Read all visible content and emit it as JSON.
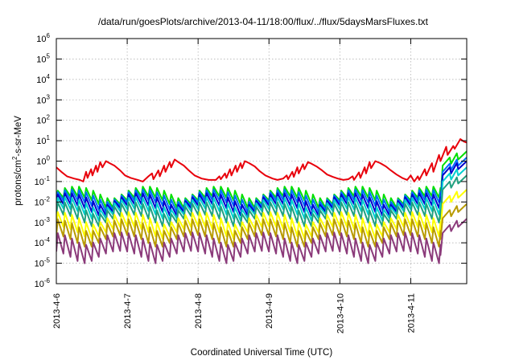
{
  "chart_data": {
    "type": "line",
    "title": "/data/run/goesPlots/archive/2013-04-11/18:00/flux/../flux/5daysMarsFluxes.txt",
    "xlabel": "Coordinated Universal Time (UTC)",
    "ylabel": {
      "base": "protons/cm",
      "sup": "2",
      "rest": "-s-sr-MeV"
    },
    "y_scale": "log",
    "ylim": [
      1e-06,
      1000000.0
    ],
    "xlim": [
      "2013-04-06 00:00",
      "2013-04-11 19:00"
    ],
    "grid": true,
    "legend": "none",
    "y_ticks": [
      {
        "exp": -6,
        "label": "10",
        "sup": "-6"
      },
      {
        "exp": -5,
        "label": "10",
        "sup": "-5"
      },
      {
        "exp": -4,
        "label": "10",
        "sup": "-4"
      },
      {
        "exp": -3,
        "label": "10",
        "sup": "-3"
      },
      {
        "exp": -2,
        "label": "10",
        "sup": "-2"
      },
      {
        "exp": -1,
        "label": "10",
        "sup": "-1"
      },
      {
        "exp": 0,
        "label": "10",
        "sup": "0"
      },
      {
        "exp": 1,
        "label": "10",
        "sup": "1"
      },
      {
        "exp": 2,
        "label": "10",
        "sup": "2"
      },
      {
        "exp": 3,
        "label": "10",
        "sup": "3"
      },
      {
        "exp": 4,
        "label": "10",
        "sup": "4"
      },
      {
        "exp": 5,
        "label": "10",
        "sup": "5"
      },
      {
        "exp": 6,
        "label": "10",
        "sup": "6"
      }
    ],
    "x_ticks": [
      {
        "day": 0,
        "label": "2013-4-6"
      },
      {
        "day": 1,
        "label": "2013-4-7"
      },
      {
        "day": 2,
        "label": "2013-4-8"
      },
      {
        "day": 3,
        "label": "2013-4-9"
      },
      {
        "day": 4,
        "label": "2013-4-10"
      },
      {
        "day": 5,
        "label": "2013-4-11"
      }
    ],
    "series": [
      {
        "color": "#e8000b",
        "points": [
          [
            0,
            0.5
          ],
          [
            0.07,
            0.3
          ],
          [
            0.15,
            0.18
          ],
          [
            0.25,
            0.14
          ],
          [
            0.33,
            0.12
          ],
          [
            0.38,
            0.1
          ],
          [
            0.42,
            0.3
          ],
          [
            0.44,
            0.15
          ],
          [
            0.49,
            0.4
          ],
          [
            0.51,
            0.2
          ],
          [
            0.56,
            0.6
          ],
          [
            0.58,
            0.3
          ],
          [
            0.62,
            0.9
          ],
          [
            0.65,
            0.5
          ],
          [
            0.7,
            1.0
          ],
          [
            0.75,
            0.8
          ],
          [
            0.82,
            0.6
          ],
          [
            0.9,
            0.35
          ],
          [
            0.97,
            0.2
          ],
          [
            1.05,
            0.15
          ],
          [
            1.15,
            0.12
          ],
          [
            1.22,
            0.1
          ],
          [
            1.3,
            0.18
          ],
          [
            1.35,
            0.25
          ],
          [
            1.37,
            0.13
          ],
          [
            1.44,
            0.35
          ],
          [
            1.46,
            0.18
          ],
          [
            1.52,
            0.6
          ],
          [
            1.54,
            0.3
          ],
          [
            1.6,
            0.9
          ],
          [
            1.62,
            0.5
          ],
          [
            1.67,
            1.2
          ],
          [
            1.72,
            0.9
          ],
          [
            1.8,
            0.6
          ],
          [
            1.87,
            0.35
          ],
          [
            1.95,
            0.2
          ],
          [
            2.05,
            0.14
          ],
          [
            2.15,
            0.12
          ],
          [
            2.25,
            0.12
          ],
          [
            2.3,
            0.18
          ],
          [
            2.32,
            0.13
          ],
          [
            2.38,
            0.25
          ],
          [
            2.4,
            0.15
          ],
          [
            2.45,
            0.4
          ],
          [
            2.47,
            0.2
          ],
          [
            2.53,
            0.6
          ],
          [
            2.55,
            0.3
          ],
          [
            2.6,
            0.8
          ],
          [
            2.62,
            0.45
          ],
          [
            2.66,
            1.0
          ],
          [
            2.72,
            0.8
          ],
          [
            2.8,
            0.55
          ],
          [
            2.87,
            0.32
          ],
          [
            2.95,
            0.2
          ],
          [
            3.05,
            0.14
          ],
          [
            3.12,
            0.12
          ],
          [
            3.2,
            0.14
          ],
          [
            3.25,
            0.2
          ],
          [
            3.27,
            0.13
          ],
          [
            3.33,
            0.3
          ],
          [
            3.35,
            0.17
          ],
          [
            3.4,
            0.5
          ],
          [
            3.42,
            0.25
          ],
          [
            3.48,
            0.7
          ],
          [
            3.5,
            0.4
          ],
          [
            3.55,
            0.9
          ],
          [
            3.6,
            0.75
          ],
          [
            3.67,
            0.55
          ],
          [
            3.75,
            0.35
          ],
          [
            3.82,
            0.22
          ],
          [
            3.9,
            0.17
          ],
          [
            3.97,
            0.14
          ],
          [
            4.05,
            0.12
          ],
          [
            4.12,
            0.13
          ],
          [
            4.18,
            0.18
          ],
          [
            4.2,
            0.12
          ],
          [
            4.27,
            0.28
          ],
          [
            4.29,
            0.15
          ],
          [
            4.35,
            0.5
          ],
          [
            4.37,
            0.25
          ],
          [
            4.42,
            0.9
          ],
          [
            4.44,
            0.45
          ],
          [
            4.5,
            1.0
          ],
          [
            4.57,
            0.8
          ],
          [
            4.65,
            0.55
          ],
          [
            4.72,
            0.35
          ],
          [
            4.8,
            0.22
          ],
          [
            4.88,
            0.15
          ],
          [
            4.95,
            0.12
          ],
          [
            5.0,
            0.2
          ],
          [
            5.05,
            0.1
          ],
          [
            5.1,
            0.18
          ],
          [
            5.12,
            0.12
          ],
          [
            5.2,
            0.4
          ],
          [
            5.22,
            0.2
          ],
          [
            5.3,
            0.8
          ],
          [
            5.32,
            0.3
          ],
          [
            5.4,
            2.0
          ],
          [
            5.42,
            1.0
          ],
          [
            5.5,
            5.0
          ],
          [
            5.52,
            2.0
          ],
          [
            5.6,
            5.5
          ],
          [
            5.62,
            4.0
          ],
          [
            5.7,
            12.0
          ],
          [
            5.75,
            9.0
          ],
          [
            5.79,
            8.0
          ]
        ]
      },
      {
        "color": "#00e000",
        "base": 0.012,
        "amp": 3.0,
        "end": 3.0
      },
      {
        "color": "#0070ff",
        "base": 0.008,
        "amp": 3.2,
        "end": 1.5
      },
      {
        "color": "#0000cc",
        "base": 0.005,
        "amp": 3.4,
        "end": 1.0
      },
      {
        "color": "#00d0d0",
        "base": 0.003,
        "amp": 3.6,
        "end": 0.5
      },
      {
        "color": "#20a080",
        "base": 0.0015,
        "amp": 4.0,
        "end": 0.2
      },
      {
        "color": "#ffff00",
        "base": 0.0004,
        "amp": 5.0,
        "end": 0.04
      },
      {
        "color": "#b89a00",
        "base": 0.00015,
        "amp": 6.0,
        "end": 0.008
      },
      {
        "color": "#8b3a7a",
        "base": 2.5e-05,
        "amp": 8.0,
        "end": 0.0015
      }
    ]
  }
}
